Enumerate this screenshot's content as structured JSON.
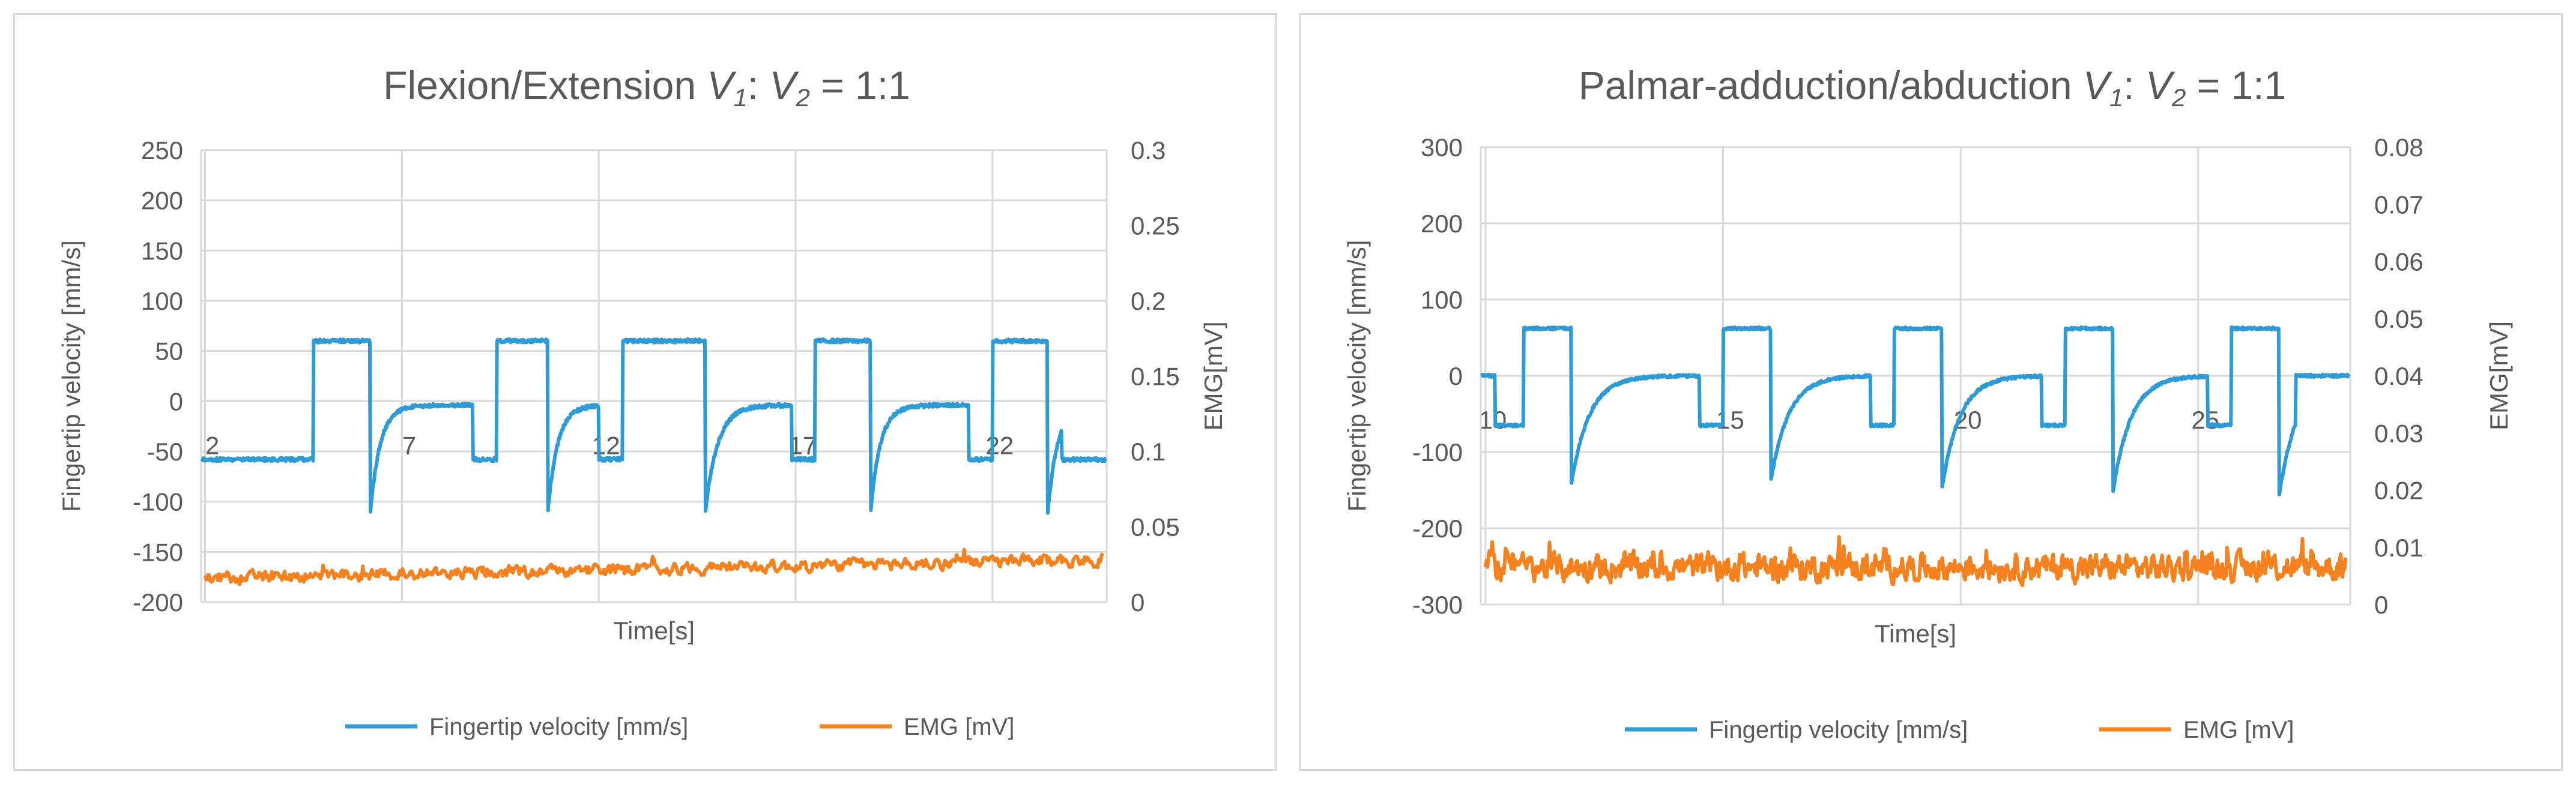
{
  "colors": {
    "velocity": "#2E9BD6",
    "emg": "#F5821F",
    "grid": "#d9d9d9",
    "text": "#595959"
  },
  "chart_data": [
    {
      "type": "line",
      "title": "Flexion/Extension  V1: V2 =  1:1",
      "title_parts": {
        "main": "Flexion/Extension  ",
        "v1": "V",
        "sub1": "1",
        "mid": ": ",
        "v2": "V",
        "sub2": "2",
        "end": " =  1:1"
      },
      "xlabel": "Time[s]",
      "ylabel_left": "Fingertip velocity [mm/s]",
      "ylabel_right": "EMG[mV]",
      "x_range": [
        1.9,
        24.9
      ],
      "x_ticks": [
        2,
        7,
        12,
        17,
        22
      ],
      "x_tick_labels": [
        "2",
        "7",
        "12",
        "17",
        "22"
      ],
      "ylim_left": [
        -200,
        250
      ],
      "y_ticks_left": [
        -200,
        -150,
        -100,
        -50,
        0,
        50,
        100,
        150,
        200,
        250
      ],
      "y_tick_labels_left": [
        "-200",
        "-150",
        "-100",
        "-50",
        "0",
        "50",
        "100",
        "150",
        "200",
        "250"
      ],
      "ylim_right": [
        0,
        0.3
      ],
      "y_ticks_right": [
        0,
        0.05,
        0.1,
        0.15,
        0.2,
        0.25,
        0.3
      ],
      "y_tick_labels_right": [
        "0",
        "0.05",
        "0.1",
        "0.15",
        "0.2",
        "0.25",
        "0.3"
      ],
      "cycles": [
        {
          "neg_start": 4.1,
          "neg_end": 4.75,
          "plat_start": 4.75,
          "plat_end": 6.2,
          "min": -110,
          "recover_end": 7.0
        },
        {
          "neg_start": 8.8,
          "neg_end": 9.4,
          "plat_start": 9.4,
          "plat_end": 10.7,
          "min": -112,
          "recover_end": 11.5
        },
        {
          "neg_start": 12.0,
          "neg_end": 12.6,
          "plat_start": 12.6,
          "plat_end": 14.7,
          "min": -112,
          "recover_end": 15.7
        },
        {
          "neg_start": 16.9,
          "neg_end": 17.5,
          "plat_start": 17.5,
          "plat_end": 18.9,
          "min": -112,
          "recover_end": 19.7
        },
        {
          "neg_start": 21.4,
          "neg_end": 22.0,
          "plat_start": 22.0,
          "plat_end": 23.4,
          "min": -112,
          "recover_end": 24.2
        }
      ],
      "plateau_level": 60,
      "neg_level": -58,
      "baseline": -4,
      "start_value": -58,
      "end_value": -58,
      "emg_mean": 0.016,
      "emg_noise": 0.006,
      "emg_trend": 0.012,
      "series": [
        {
          "name": "Fingertip velocity [mm/s]",
          "axis": "left"
        },
        {
          "name": "EMG [mV]",
          "axis": "right"
        }
      ],
      "legend": [
        "Fingertip velocity [mm/s]",
        "EMG [mV]"
      ],
      "legend_position": "bottom"
    },
    {
      "type": "line",
      "title": "Palmar-adduction/abduction  V1: V2 =  1:1",
      "title_parts": {
        "main": "Palmar-adduction/abduction  ",
        "v1": "V",
        "sub1": "1",
        "mid": ": ",
        "v2": "V",
        "sub2": "2",
        "end": " =  1:1"
      },
      "xlabel": "Time[s]",
      "ylabel_left": "Fingertip velocity [mm/s]",
      "ylabel_right": "EMG[mV]",
      "x_range": [
        9.9,
        28.2
      ],
      "x_ticks": [
        10,
        15,
        20,
        25
      ],
      "x_tick_labels": [
        "10",
        "15",
        "20",
        "25"
      ],
      "ylim_left": [
        -300,
        300
      ],
      "y_ticks_left": [
        -300,
        -200,
        -100,
        0,
        100,
        200,
        300
      ],
      "y_tick_labels_left": [
        "-300",
        "-200",
        "-100",
        "0",
        "100",
        "200",
        "300"
      ],
      "ylim_right": [
        0,
        0.08
      ],
      "y_ticks_right": [
        0,
        0.01,
        0.02,
        0.03,
        0.04,
        0.05,
        0.06,
        0.07,
        0.08
      ],
      "y_tick_labels_right": [
        "0",
        "0.01",
        "0.02",
        "0.03",
        "0.04",
        "0.05",
        "0.06",
        "0.07",
        "0.08"
      ],
      "cycles": [
        {
          "neg_start": 10.2,
          "neg_end": 10.8,
          "plat_start": 10.8,
          "plat_end": 11.8,
          "min": -145,
          "recover_end": 13.0
        },
        {
          "neg_start": 14.5,
          "neg_end": 15.0,
          "plat_start": 15.0,
          "plat_end": 16.0,
          "min": -140,
          "recover_end": 17.2
        },
        {
          "neg_start": 18.1,
          "neg_end": 18.6,
          "plat_start": 18.6,
          "plat_end": 19.6,
          "min": -150,
          "recover_end": 20.8
        },
        {
          "neg_start": 21.7,
          "neg_end": 22.2,
          "plat_start": 22.2,
          "plat_end": 23.2,
          "min": -155,
          "recover_end": 24.4
        },
        {
          "neg_start": 25.2,
          "neg_end": 25.7,
          "plat_start": 25.7,
          "plat_end": 26.7,
          "min": -160,
          "recover_end": 27.9
        }
      ],
      "plateau_level": 62,
      "neg_level": -65,
      "baseline": 0,
      "start_value": 0,
      "end_value": 0,
      "emg_mean": 0.0065,
      "emg_noise": 0.0035,
      "emg_trend": 0.0,
      "series": [
        {
          "name": "Fingertip velocity [mm/s]",
          "axis": "left"
        },
        {
          "name": "EMG [mV]",
          "axis": "right"
        }
      ],
      "legend": [
        "Fingertip velocity [mm/s]",
        "EMG [mV]"
      ],
      "legend_position": "bottom"
    }
  ]
}
